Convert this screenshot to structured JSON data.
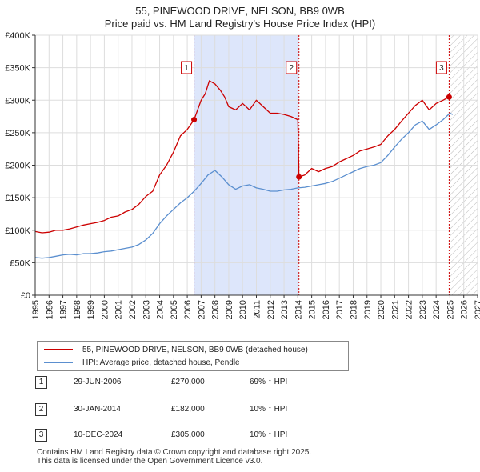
{
  "title_line1": "55, PINEWOOD DRIVE, NELSON, BB9 0WB",
  "title_line2": "Price paid vs. HM Land Registry's House Price Index (HPI)",
  "colors": {
    "sale": "#cc0000",
    "hpi": "#5b8fcf",
    "shade": "#dde6fb",
    "grid": "#dddddd"
  },
  "legend": {
    "sale_label": "55, PINEWOOD DRIVE, NELSON, BB9 0WB (detached house)",
    "hpi_label": "HPI: Average price, detached house, Pendle"
  },
  "sales": [
    {
      "num": "1",
      "date": "29-JUN-2006",
      "price": "£270,000",
      "hpi": "69% ↑ HPI"
    },
    {
      "num": "2",
      "date": "30-JAN-2014",
      "price": "£182,000",
      "hpi": "10% ↑ HPI"
    },
    {
      "num": "3",
      "date": "10-DEC-2024",
      "price": "£305,000",
      "hpi": "10% ↑ HPI"
    }
  ],
  "footer": {
    "line1": "Contains HM Land Registry data © Crown copyright and database right 2025.",
    "line2": "This data is licensed under the Open Government Licence v3.0."
  },
  "chart_data": {
    "type": "line",
    "x_range": [
      1995,
      2027
    ],
    "ylim": [
      0,
      400000
    ],
    "y_ticks": [
      {
        "value": 0,
        "label": "£0"
      },
      {
        "value": 50000,
        "label": "£50K"
      },
      {
        "value": 100000,
        "label": "£100K"
      },
      {
        "value": 150000,
        "label": "£150K"
      },
      {
        "value": 200000,
        "label": "£200K"
      },
      {
        "value": 250000,
        "label": "£250K"
      },
      {
        "value": 300000,
        "label": "£300K"
      },
      {
        "value": 350000,
        "label": "£350K"
      },
      {
        "value": 400000,
        "label": "£400K"
      }
    ],
    "x_ticks": [
      "1995",
      "1996",
      "1997",
      "1998",
      "1999",
      "2000",
      "2001",
      "2002",
      "2003",
      "2004",
      "2005",
      "2006",
      "2007",
      "2008",
      "2009",
      "2010",
      "2011",
      "2012",
      "2013",
      "2014",
      "2015",
      "2016",
      "2017",
      "2018",
      "2019",
      "2020",
      "2021",
      "2022",
      "2023",
      "2024",
      "2025",
      "2026",
      "2027"
    ],
    "grid": true,
    "shaded_span": [
      2006.49,
      2014.08
    ],
    "future_hatch_start": 2025.0,
    "markers": [
      {
        "label": "1",
        "x": 2006.49,
        "y": 270000
      },
      {
        "label": "2",
        "x": 2014.08,
        "y": 182000
      },
      {
        "label": "3",
        "x": 2024.94,
        "y": 305000
      }
    ],
    "series": [
      {
        "name": "55, PINEWOOD DRIVE, NELSON, BB9 0WB (detached house)",
        "points": [
          [
            1995.0,
            98000
          ],
          [
            1995.5,
            96000
          ],
          [
            1996.0,
            97000
          ],
          [
            1996.5,
            100000
          ],
          [
            1997.0,
            100000
          ],
          [
            1997.5,
            102000
          ],
          [
            1998.0,
            105000
          ],
          [
            1998.5,
            108000
          ],
          [
            1999.0,
            110000
          ],
          [
            1999.5,
            112000
          ],
          [
            2000.0,
            115000
          ],
          [
            2000.5,
            120000
          ],
          [
            2001.0,
            122000
          ],
          [
            2001.5,
            128000
          ],
          [
            2002.0,
            132000
          ],
          [
            2002.5,
            140000
          ],
          [
            2003.0,
            152000
          ],
          [
            2003.5,
            160000
          ],
          [
            2004.0,
            185000
          ],
          [
            2004.5,
            200000
          ],
          [
            2005.0,
            220000
          ],
          [
            2005.5,
            245000
          ],
          [
            2006.0,
            255000
          ],
          [
            2006.49,
            270000
          ],
          [
            2007.0,
            300000
          ],
          [
            2007.3,
            310000
          ],
          [
            2007.6,
            330000
          ],
          [
            2008.0,
            325000
          ],
          [
            2008.4,
            315000
          ],
          [
            2008.7,
            305000
          ],
          [
            2009.0,
            290000
          ],
          [
            2009.5,
            285000
          ],
          [
            2010.0,
            295000
          ],
          [
            2010.5,
            285000
          ],
          [
            2011.0,
            300000
          ],
          [
            2011.5,
            290000
          ],
          [
            2012.0,
            280000
          ],
          [
            2012.5,
            280000
          ],
          [
            2013.0,
            278000
          ],
          [
            2013.5,
            275000
          ],
          [
            2014.0,
            270000
          ],
          [
            2014.08,
            182000
          ],
          [
            2014.5,
            185000
          ],
          [
            2015.0,
            195000
          ],
          [
            2015.5,
            190000
          ],
          [
            2016.0,
            195000
          ],
          [
            2016.5,
            198000
          ],
          [
            2017.0,
            205000
          ],
          [
            2017.5,
            210000
          ],
          [
            2018.0,
            215000
          ],
          [
            2018.5,
            222000
          ],
          [
            2019.0,
            225000
          ],
          [
            2019.5,
            228000
          ],
          [
            2020.0,
            232000
          ],
          [
            2020.5,
            245000
          ],
          [
            2021.0,
            255000
          ],
          [
            2021.5,
            268000
          ],
          [
            2022.0,
            280000
          ],
          [
            2022.5,
            292000
          ],
          [
            2023.0,
            300000
          ],
          [
            2023.5,
            285000
          ],
          [
            2024.0,
            295000
          ],
          [
            2024.5,
            300000
          ],
          [
            2024.94,
            305000
          ]
        ]
      },
      {
        "name": "HPI: Average price, detached house, Pendle",
        "points": [
          [
            1995.0,
            58000
          ],
          [
            1995.5,
            57000
          ],
          [
            1996.0,
            58000
          ],
          [
            1996.5,
            60000
          ],
          [
            1997.0,
            62000
          ],
          [
            1997.5,
            63000
          ],
          [
            1998.0,
            62000
          ],
          [
            1998.5,
            64000
          ],
          [
            1999.0,
            64000
          ],
          [
            1999.5,
            65000
          ],
          [
            2000.0,
            67000
          ],
          [
            2000.5,
            68000
          ],
          [
            2001.0,
            70000
          ],
          [
            2001.5,
            72000
          ],
          [
            2002.0,
            74000
          ],
          [
            2002.5,
            78000
          ],
          [
            2003.0,
            85000
          ],
          [
            2003.5,
            95000
          ],
          [
            2004.0,
            110000
          ],
          [
            2004.5,
            122000
          ],
          [
            2005.0,
            132000
          ],
          [
            2005.5,
            142000
          ],
          [
            2006.0,
            150000
          ],
          [
            2006.5,
            160000
          ],
          [
            2007.0,
            172000
          ],
          [
            2007.5,
            185000
          ],
          [
            2008.0,
            192000
          ],
          [
            2008.5,
            182000
          ],
          [
            2009.0,
            170000
          ],
          [
            2009.5,
            163000
          ],
          [
            2010.0,
            168000
          ],
          [
            2010.5,
            170000
          ],
          [
            2011.0,
            165000
          ],
          [
            2011.5,
            163000
          ],
          [
            2012.0,
            160000
          ],
          [
            2012.5,
            160000
          ],
          [
            2013.0,
            162000
          ],
          [
            2013.5,
            163000
          ],
          [
            2014.0,
            165000
          ],
          [
            2014.5,
            166000
          ],
          [
            2015.0,
            168000
          ],
          [
            2015.5,
            170000
          ],
          [
            2016.0,
            172000
          ],
          [
            2016.5,
            175000
          ],
          [
            2017.0,
            180000
          ],
          [
            2017.5,
            185000
          ],
          [
            2018.0,
            190000
          ],
          [
            2018.5,
            195000
          ],
          [
            2019.0,
            198000
          ],
          [
            2019.5,
            200000
          ],
          [
            2020.0,
            204000
          ],
          [
            2020.5,
            215000
          ],
          [
            2021.0,
            228000
          ],
          [
            2021.5,
            240000
          ],
          [
            2022.0,
            250000
          ],
          [
            2022.5,
            262000
          ],
          [
            2023.0,
            268000
          ],
          [
            2023.5,
            255000
          ],
          [
            2024.0,
            262000
          ],
          [
            2024.5,
            270000
          ],
          [
            2025.0,
            280000
          ],
          [
            2025.2,
            278000
          ]
        ]
      }
    ]
  }
}
